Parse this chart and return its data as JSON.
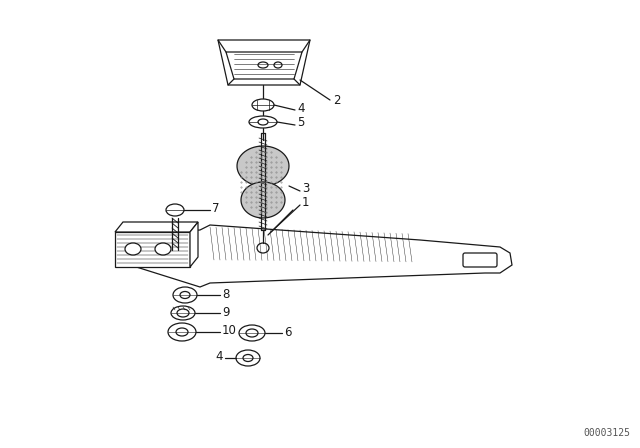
{
  "bg_color": "#ffffff",
  "line_color": "#1a1a1a",
  "diagram_code": "00003125",
  "diagram_code_size": 7,
  "figsize": [
    6.4,
    4.48
  ],
  "dpi": 100
}
